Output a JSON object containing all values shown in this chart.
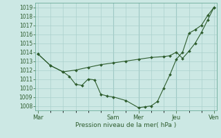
{
  "xlabel": "Pression niveau de la mer( hPa )",
  "background_color": "#cce8e4",
  "grid_color": "#aad0cc",
  "line_color": "#2d5c2d",
  "ylim": [
    1007.5,
    1019.5
  ],
  "yticks": [
    1008,
    1009,
    1010,
    1011,
    1012,
    1013,
    1014,
    1015,
    1016,
    1017,
    1018,
    1019
  ],
  "xtick_labels": [
    "Mar",
    "Sam",
    "Mer",
    "Jeu",
    "Ven"
  ],
  "xtick_positions": [
    0.0,
    3.0,
    4.0,
    5.5,
    7.0
  ],
  "xlim": [
    -0.1,
    7.1
  ],
  "series1_x": [
    0.0,
    0.5,
    1.0,
    1.25,
    1.5,
    1.75,
    2.0,
    2.25,
    2.5,
    2.75,
    3.0,
    3.5,
    4.0,
    4.25,
    4.5,
    4.75,
    5.0,
    5.25,
    5.5,
    5.75,
    6.0,
    6.25,
    6.5,
    6.75,
    7.0
  ],
  "series1_y": [
    1013.8,
    1012.5,
    1011.8,
    1011.3,
    1010.4,
    1010.3,
    1011.0,
    1010.9,
    1009.3,
    1009.1,
    1009.0,
    1008.6,
    1007.8,
    1007.9,
    1008.0,
    1008.5,
    1010.0,
    1011.5,
    1013.2,
    1014.0,
    1016.1,
    1016.5,
    1017.0,
    1018.1,
    1019.0
  ],
  "series2_x": [
    0.0,
    0.5,
    1.0,
    1.5,
    2.0,
    2.5,
    3.0,
    3.5,
    4.0,
    4.5,
    5.0,
    5.25,
    5.5,
    5.75,
    6.0,
    6.25,
    6.5,
    6.75,
    7.0
  ],
  "series2_y": [
    1013.8,
    1012.5,
    1011.8,
    1012.0,
    1012.3,
    1012.6,
    1012.8,
    1013.0,
    1013.2,
    1013.4,
    1013.5,
    1013.6,
    1014.0,
    1013.3,
    1014.1,
    1015.0,
    1016.2,
    1017.6,
    1019.0
  ],
  "vlines": [
    3.0,
    4.0,
    5.5
  ],
  "vline_color": "#88bbb8"
}
